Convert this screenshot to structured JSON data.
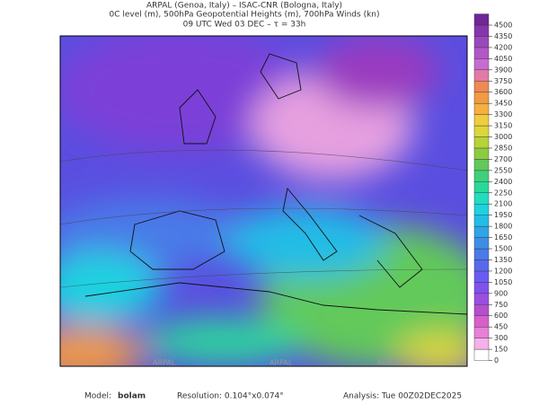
{
  "header": {
    "line1": "ARPAL (Genoa, Italy)  –  ISAC-CNR (Bologna, Italy)",
    "line2": "0C level (m), 500hPa Geopotential Heights (m), 700hPa Winds (kn)",
    "line3": "09 UTC Wed 03 DEC  –  τ = 33h"
  },
  "map": {
    "watermark": "ARPAL"
  },
  "colorbar": {
    "ticks": [
      0,
      150,
      300,
      450,
      600,
      750,
      900,
      1050,
      1200,
      1350,
      1500,
      1650,
      1800,
      1950,
      2100,
      2250,
      2400,
      2550,
      2700,
      2850,
      3000,
      3150,
      3300,
      3450,
      3600,
      3750,
      3900,
      4050,
      4200,
      4350,
      4500
    ],
    "colors": [
      "#ffffff",
      "#f7b0e8",
      "#e87fd8",
      "#d75fc9",
      "#b44fd0",
      "#9a4fe0",
      "#7f52ee",
      "#6a5cf2",
      "#5869ee",
      "#4a7ae8",
      "#3c8ee4",
      "#2fa4e6",
      "#22bde6",
      "#1fd2e0",
      "#21dcc0",
      "#2ad89a",
      "#3fd07a",
      "#62c95a",
      "#8ccc3f",
      "#b8d23a",
      "#dcd63c",
      "#f0cc3e",
      "#f5b040",
      "#f29a44",
      "#ee8a55",
      "#e27aa8",
      "#c86bd0",
      "#b058c8",
      "#9a48bc",
      "#8636ac",
      "#6f2696"
    ]
  },
  "footer": {
    "model_label": "Model:",
    "model": "bolam",
    "resolution": "Resolution: 0.104°x0.074°",
    "analysis": "Analysis: Tue 00Z02DEC2025"
  }
}
